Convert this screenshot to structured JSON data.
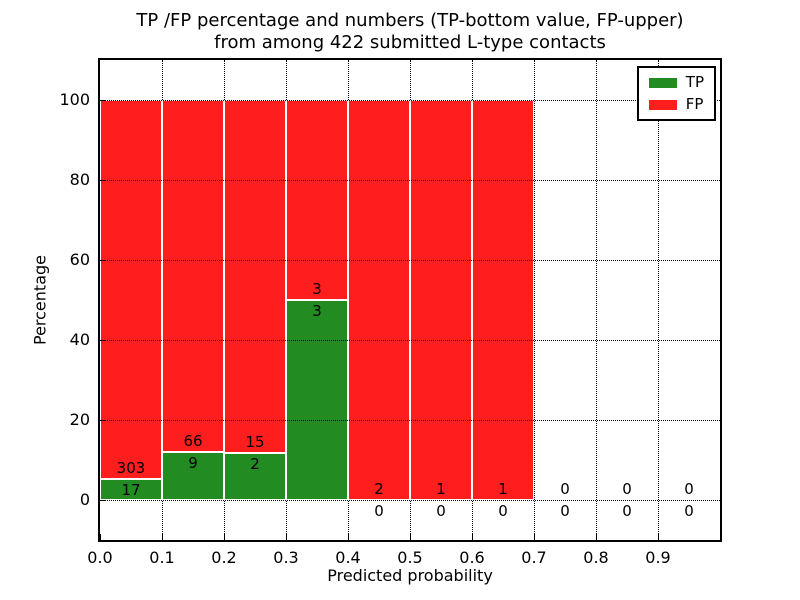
{
  "chart_data": {
    "type": "bar",
    "stacked": true,
    "title_lines": [
      "TP /FP percentage and numbers (TP-bottom value, FP-upper)",
      "from among 422 submitted L-type contacts"
    ],
    "xlabel": "Predicted probability",
    "ylabel": "Percentage",
    "xlim": [
      0.0,
      1.0
    ],
    "ylim": [
      -10,
      110
    ],
    "x_ticks": [
      "0.0",
      "0.1",
      "0.2",
      "0.3",
      "0.4",
      "0.5",
      "0.6",
      "0.7",
      "0.8",
      "0.9"
    ],
    "y_ticks": [
      0,
      20,
      40,
      60,
      80,
      100
    ],
    "grid": "dotted",
    "bar_unit": "percent of bin total",
    "colors": {
      "tp": "#228b22",
      "fp": "#ff1e1e",
      "bar_edge": "#ffffff"
    },
    "legend": {
      "position": "upper-right",
      "entries": [
        {
          "label": "TP",
          "color": "#228b22"
        },
        {
          "label": "FP",
          "color": "#ff1e1e"
        }
      ]
    },
    "bins": [
      {
        "range": [
          0.0,
          0.1
        ],
        "tp": 17,
        "fp": 303
      },
      {
        "range": [
          0.1,
          0.2
        ],
        "tp": 9,
        "fp": 66
      },
      {
        "range": [
          0.2,
          0.3
        ],
        "tp": 2,
        "fp": 15
      },
      {
        "range": [
          0.3,
          0.4
        ],
        "tp": 3,
        "fp": 3
      },
      {
        "range": [
          0.4,
          0.5
        ],
        "tp": 0,
        "fp": 2
      },
      {
        "range": [
          0.5,
          0.6
        ],
        "tp": 0,
        "fp": 1
      },
      {
        "range": [
          0.6,
          0.7
        ],
        "tp": 0,
        "fp": 1
      },
      {
        "range": [
          0.7,
          0.8
        ],
        "tp": 0,
        "fp": 0
      },
      {
        "range": [
          0.8,
          0.9
        ],
        "tp": 0,
        "fp": 0
      },
      {
        "range": [
          0.9,
          1.0
        ],
        "tp": 0,
        "fp": 0
      }
    ]
  }
}
